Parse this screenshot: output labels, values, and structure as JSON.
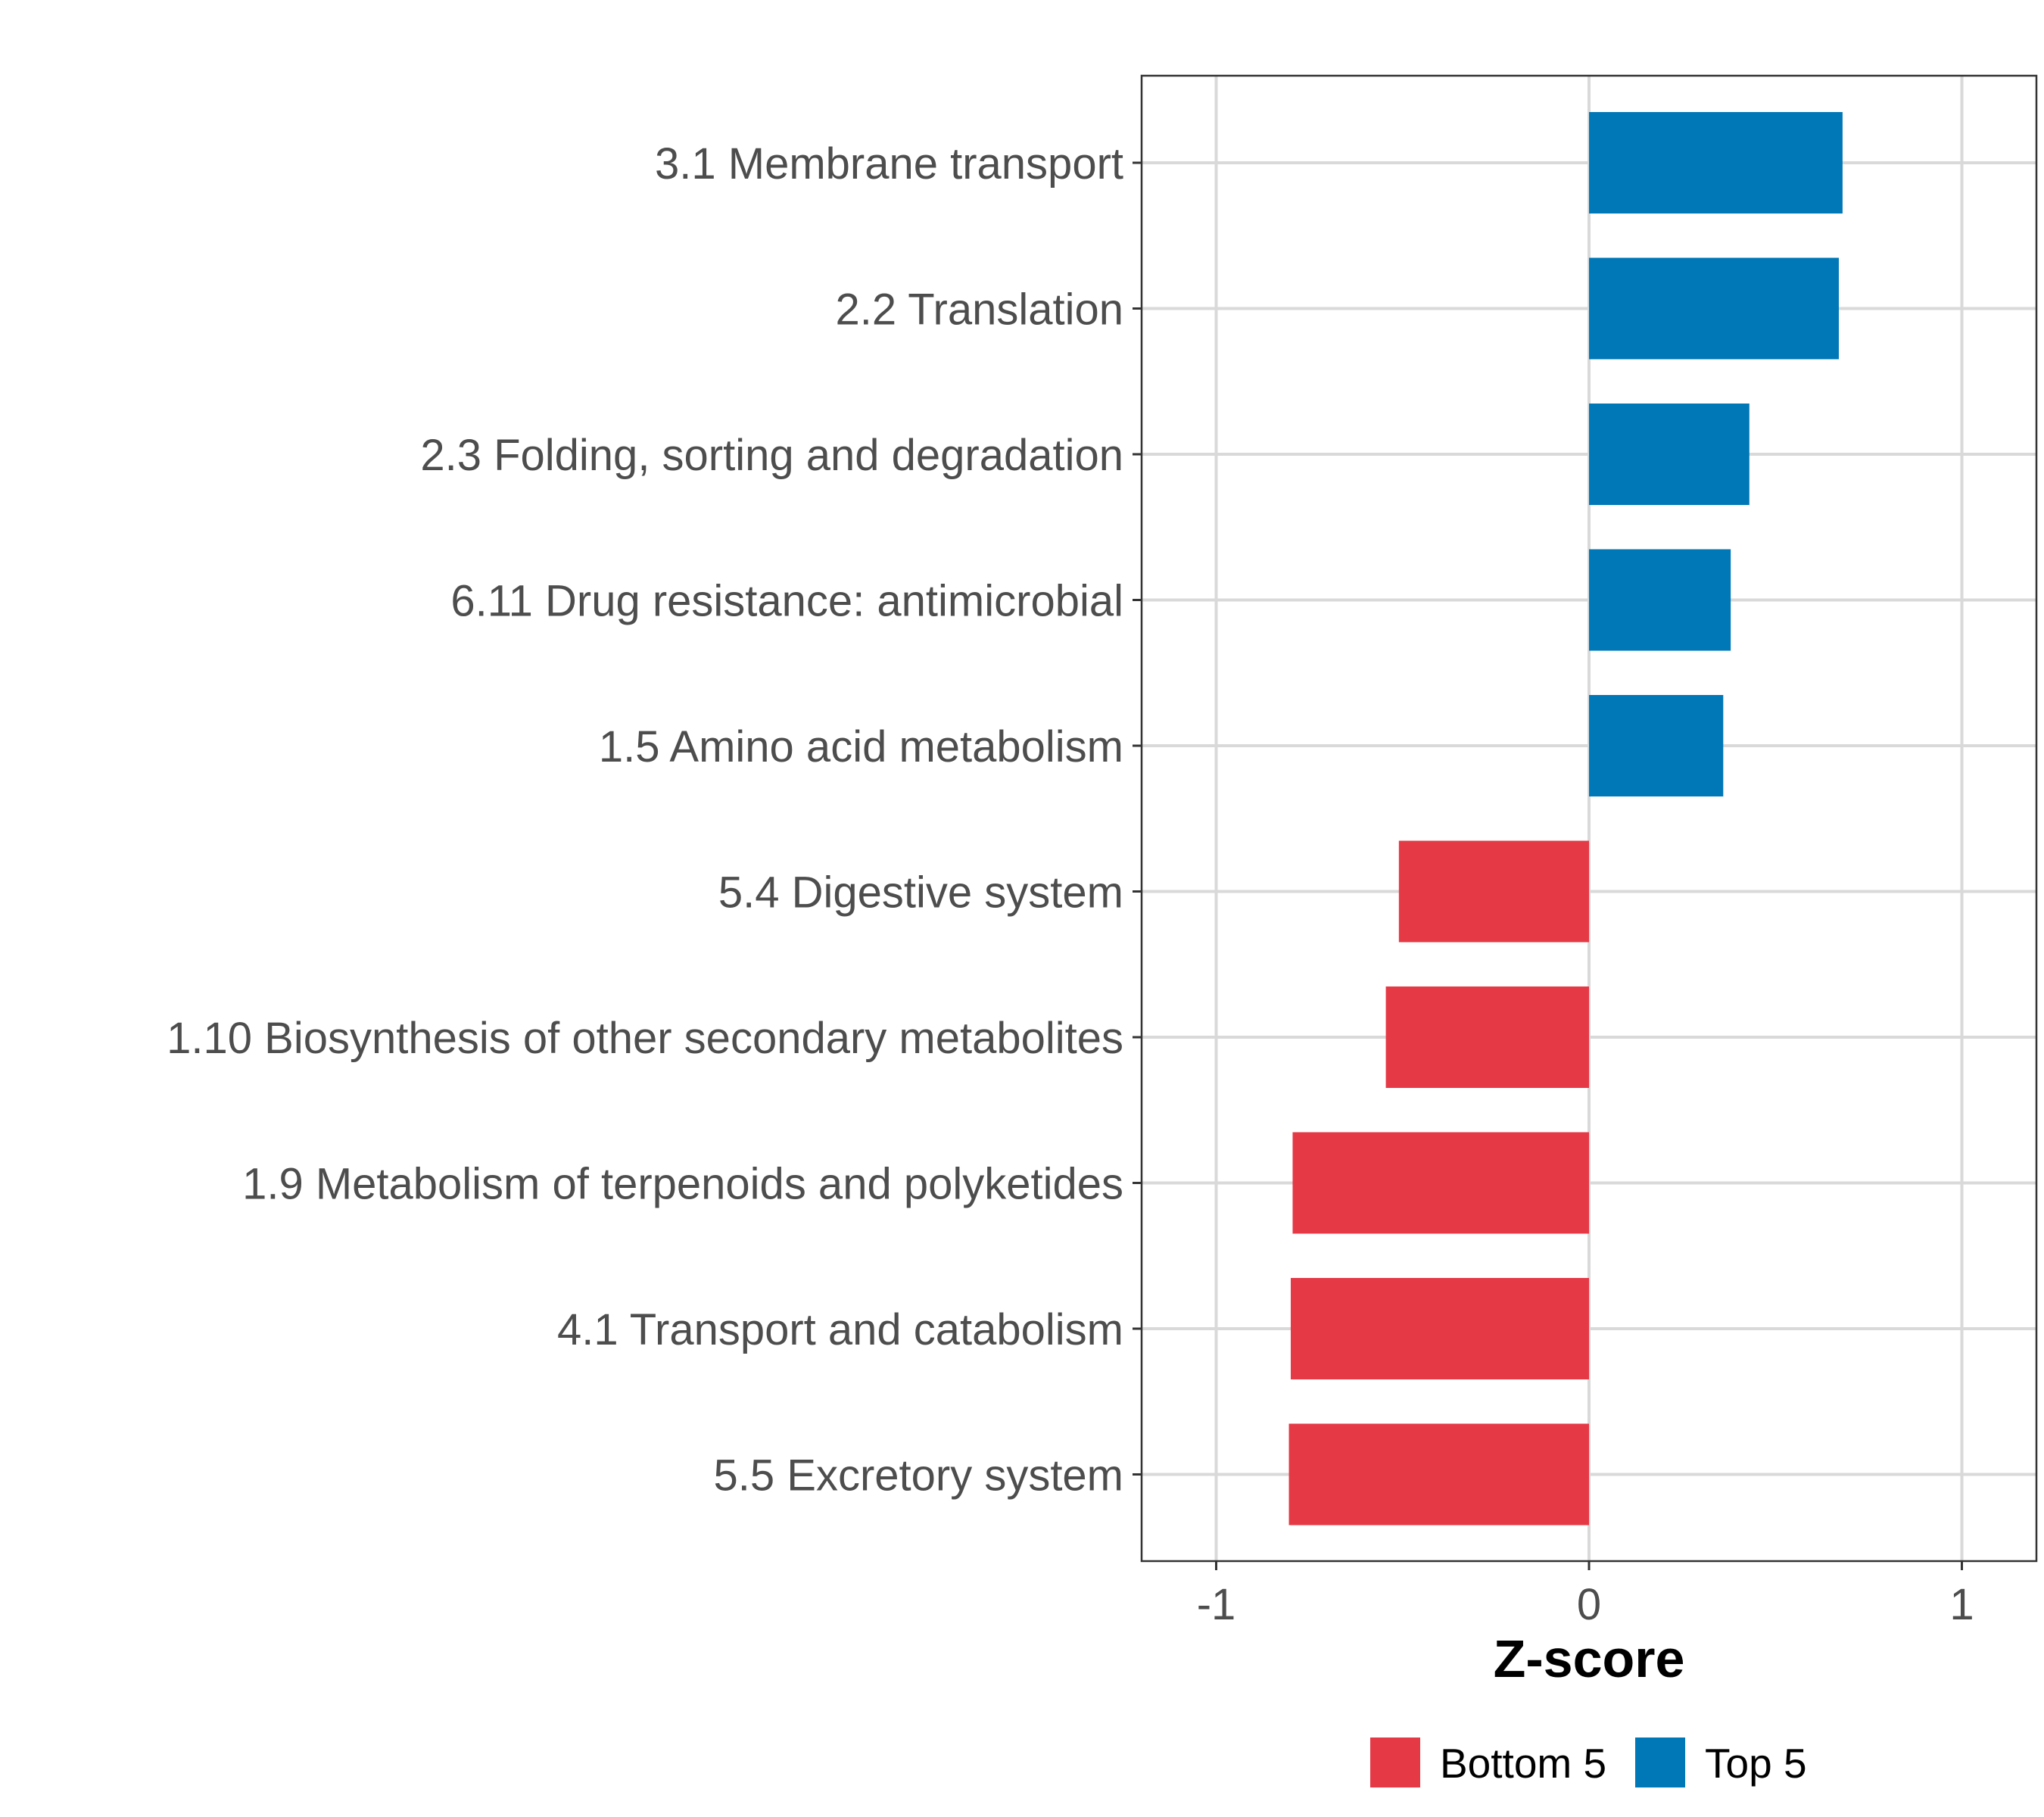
{
  "chart_data": {
    "type": "bar",
    "orientation": "horizontal",
    "title": "",
    "xlabel": "Z-score",
    "ylabel": "",
    "xlim": [
      -1.2,
      1.2
    ],
    "xticks": [
      -1,
      0,
      1
    ],
    "xtick_labels": [
      "-1",
      "0",
      "1"
    ],
    "grid": true,
    "categories": [
      "3.1 Membrane transport",
      "2.2 Translation",
      "2.3 Folding, sorting and degradation",
      "6.11 Drug resistance: antimicrobial",
      "1.5 Amino acid metabolism",
      "5.4 Digestive system",
      "1.10 Biosynthesis of other secondary metabolites",
      "1.9 Metabolism of terpenoids and polyketides",
      "4.1 Transport and catabolism",
      "5.5 Excretory system"
    ],
    "values": [
      0.68,
      0.67,
      0.43,
      0.38,
      0.36,
      -0.51,
      -0.545,
      -0.795,
      -0.8,
      -0.805
    ],
    "groups": [
      "Top 5",
      "Top 5",
      "Top 5",
      "Top 5",
      "Top 5",
      "Bottom 5",
      "Bottom 5",
      "Bottom 5",
      "Bottom 5",
      "Bottom 5"
    ],
    "legend": {
      "position": "bottom",
      "entries": [
        {
          "name": "Bottom 5",
          "color": "#e63946"
        },
        {
          "name": "Top 5",
          "color": "#0077b6"
        }
      ]
    }
  }
}
